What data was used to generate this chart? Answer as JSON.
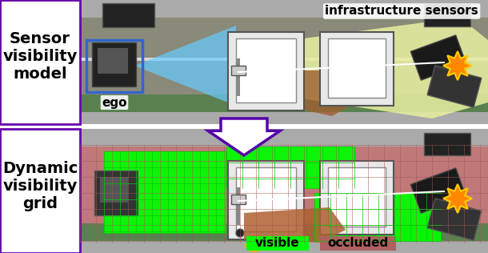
{
  "title": "",
  "top_label": "Sensor\nvisibility\nmodel",
  "bottom_label": "Dynamic\nvisibility\ngrid",
  "infra_label": "infrastructure sensors",
  "ego_label": "ego",
  "visible_label": "visible",
  "occluded_label": "occluded",
  "top_border_color": "#6600aa",
  "bottom_border_color": "#6600aa",
  "arrow_color": "#5500aa",
  "visible_color": "#00ff00",
  "occluded_color": "#b06060",
  "label_fontsize": 14,
  "small_fontsize": 11,
  "figsize": [
    6.1,
    3.16
  ],
  "dpi": 100
}
